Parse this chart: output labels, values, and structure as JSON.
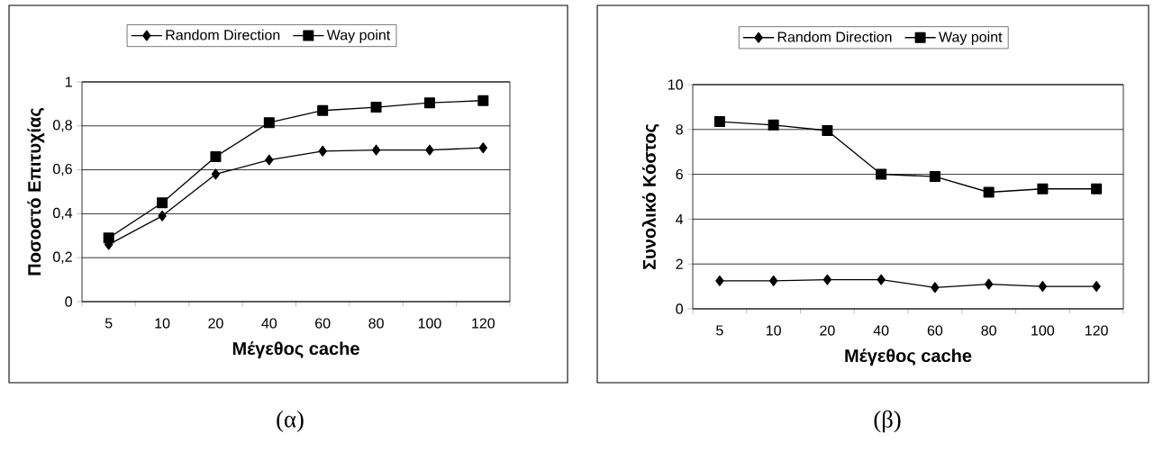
{
  "chart_data": [
    {
      "type": "line",
      "categories": [
        "5",
        "10",
        "20",
        "40",
        "60",
        "80",
        "100",
        "120"
      ],
      "xlabel": "Μέγεθος cache",
      "ylabel": "Ποσοστό Επιτυχίας",
      "series": [
        {
          "name": "Random Direction",
          "color": "#000000",
          "marker": "diamond",
          "values": [
            0.26,
            0.39,
            0.58,
            0.645,
            0.685,
            0.69,
            0.69,
            0.7
          ]
        },
        {
          "name": "Way point",
          "color": "#000000",
          "marker": "square",
          "values": [
            0.29,
            0.45,
            0.66,
            0.815,
            0.87,
            0.885,
            0.905,
            0.915
          ]
        }
      ],
      "ylim": [
        0,
        1
      ],
      "yticks": [
        0,
        {
          "value": 0.2,
          "label": "0,2"
        },
        {
          "value": 0.4,
          "label": "0,4"
        },
        {
          "value": 0.6,
          "label": "0,6"
        },
        {
          "value": 0.8,
          "label": "0,8"
        },
        1
      ],
      "grid": "y",
      "legend": "top",
      "line_style": "solid",
      "annotations": [
        "(α)"
      ]
    },
    {
      "type": "line",
      "categories": [
        "5",
        "10",
        "20",
        "40",
        "60",
        "80",
        "100",
        "120"
      ],
      "xlabel": "Μέγεθος cache",
      "ylabel": "Συνολικό Κόστος",
      "series": [
        {
          "name": "Random Direction",
          "color": "#000000",
          "marker": "diamond",
          "values": [
            1.25,
            1.25,
            1.3,
            1.3,
            0.95,
            1.1,
            1.0,
            1.0
          ]
        },
        {
          "name": "Way point",
          "color": "#000000",
          "marker": "square",
          "values": [
            8.35,
            8.2,
            7.95,
            6.0,
            5.9,
            5.2,
            5.35,
            5.35
          ]
        }
      ],
      "ylim": [
        0,
        10
      ],
      "yticks": [
        0,
        2,
        4,
        6,
        8,
        10
      ],
      "grid": "y",
      "legend": "top",
      "line_style": "solid",
      "annotations": [
        "(β)"
      ]
    }
  ]
}
